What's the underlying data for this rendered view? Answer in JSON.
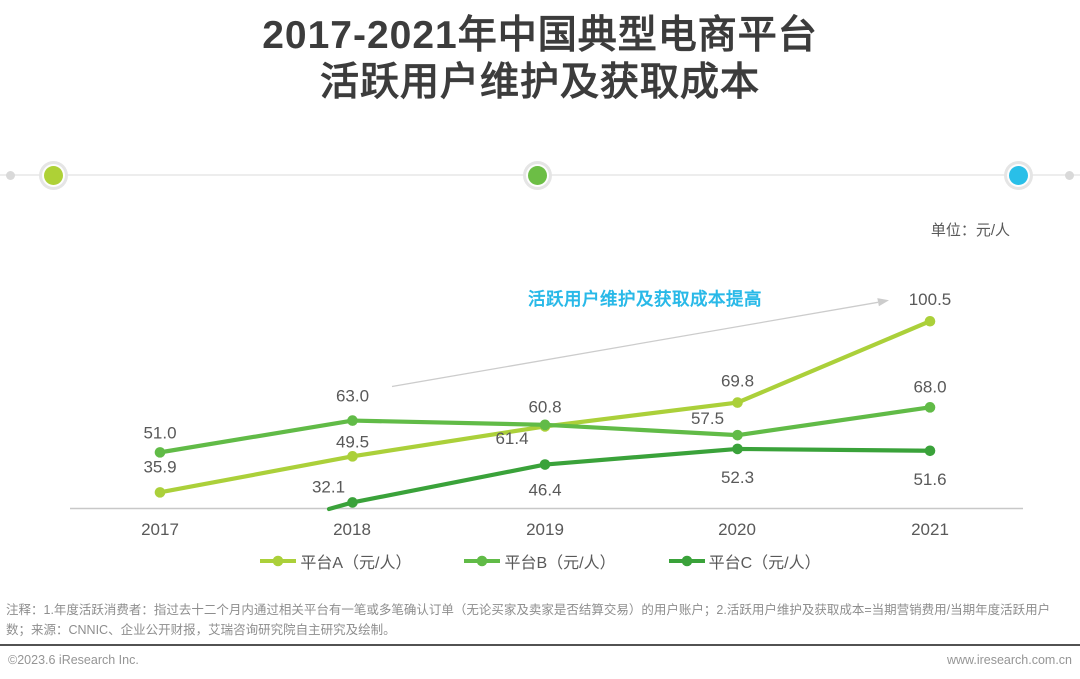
{
  "header": {
    "title_line1": "2017-2021年中国典型电商平台",
    "title_line2": "活跃用户维护及获取成本"
  },
  "timeline": {
    "dot_colors": [
      "#d9d9d9",
      "#aed136",
      "#6cbe45",
      "#29bfe8",
      "#d9d9d9"
    ]
  },
  "unit_label": "单位：元/人",
  "chart_data": {
    "type": "line",
    "title": "2017-2021年中国典型电商平台活跃用户维护及获取成本",
    "unit": "元/人",
    "categories": [
      "2017",
      "2018",
      "2019",
      "2020",
      "2021"
    ],
    "series": [
      {
        "name": "平台A（元/人）",
        "color": "#abd03a",
        "values": [
          35.9,
          49.5,
          60.8,
          69.8,
          100.5
        ]
      },
      {
        "name": "平台B（元/人）",
        "color": "#61bb47",
        "values": [
          51.0,
          63.0,
          61.4,
          57.5,
          68.0
        ]
      },
      {
        "name": "平台C（元/人）",
        "color": "#3aa23a",
        "values": [
          null,
          32.1,
          46.4,
          52.3,
          51.6
        ],
        "clipped_start": true
      }
    ],
    "annotation": {
      "text": "活跃用户维护及获取成本提高",
      "color": "#29b9e8"
    },
    "baseline_value": 30,
    "grid": false,
    "y_axis_visible": false,
    "legend_position": "bottom",
    "label_color": "#595959"
  },
  "notes": "注释：1.年度活跃消费者：指过去十二个月内通过相关平台有一笔或多笔确认订单（无论买家及卖家是否结算交易）的用户账户；2.活跃用户维护及获取成本=当期营销费用/当期年度活跃用户数；来源：CNNIC、企业公开财报，艾瑞咨询研究院自主研究及绘制。",
  "footer": {
    "left": "©2023.6 iResearch Inc.",
    "right": "www.iresearch.com.cn"
  }
}
